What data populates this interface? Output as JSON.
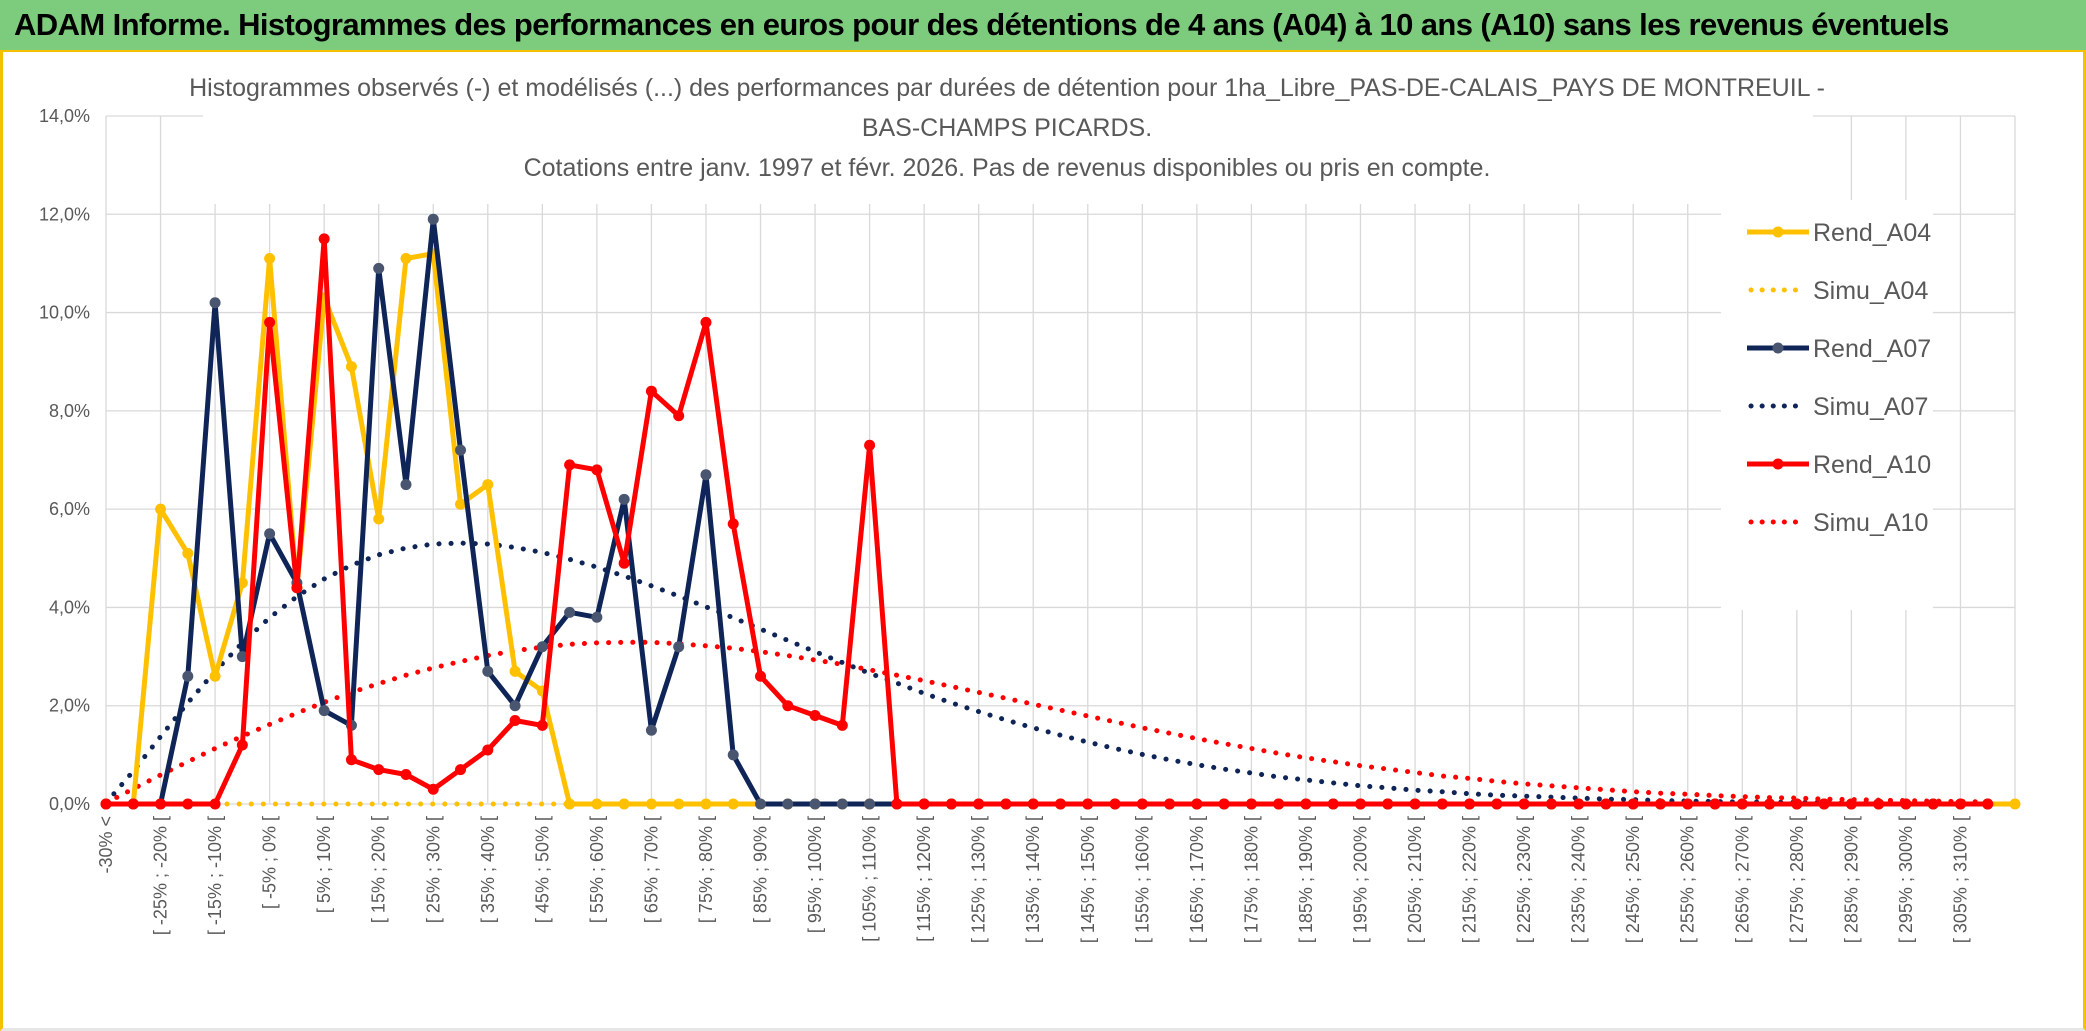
{
  "banner": {
    "title": "ADAM Informe. Histogrammes des performances en euros pour des détentions de 4 ans (A04) à 10 ans (A10) sans les revenus éventuels"
  },
  "chart_data": {
    "type": "line",
    "title_lines": [
      "Histogrammes observés (-) et modélisés (...) des performances par durées de détention pour 1ha_Libre_PAS-DE-CALAIS_PAYS DE MONTREUIL -",
      "BAS-CHAMPS PICARDS.",
      "Cotations entre janv. 1997 et févr. 2026. Pas de revenus disponibles ou pris en compte."
    ],
    "xlabel": "",
    "ylabel": "",
    "ylim": [
      0,
      14
    ],
    "y_ticks": [
      "0,0%",
      "2,0%",
      "4,0%",
      "6,0%",
      "8,0%",
      "10,0%",
      "12,0%",
      "14,0%"
    ],
    "x_tick_labels": [
      "-30% <",
      "[ -25% ; -20% [",
      "[ -15% ; -10% [",
      "[ -5% ; 0% [",
      "[ 5% ; 10% [",
      "[ 15% ; 20% [",
      "[ 25% ; 30% [",
      "[ 35% ; 40% [",
      "[ 45% ; 50% [",
      "[ 55% ; 60% [",
      "[ 65% ; 70% [",
      "[ 75% ; 80% [",
      "[ 85% ; 90% [",
      "[ 95% ; 100% [",
      "[ 105% ; 110% [",
      "[ 115% ; 120% [",
      "[ 125% ; 130% [",
      "[ 135% ; 140% [",
      "[ 145% ; 150% [",
      "[ 155% ; 160% [",
      "[ 165% ; 170% [",
      "[ 175% ; 180% [",
      "[ 185% ; 190% [",
      "[ 195% ; 200% [",
      "[ 205% ; 210% [",
      "[ 215% ; 220% [",
      "[ 225% ; 230% [",
      "[ 235% ; 240% [",
      "[ 245% ; 250% [",
      "[ 255% ; 260% [",
      "[ 265% ; 270% [",
      "[ 275% ; 280% [",
      "[ 285% ; 290% [",
      "[ 295% ; 300% [",
      "[ 305% ; 310% ["
    ],
    "grid": true,
    "legend_position": "right",
    "series": [
      {
        "name": "Rend_A04",
        "style": "solid",
        "color": "#ffc000",
        "values": [
          0,
          0,
          6.0,
          5.1,
          2.6,
          4.5,
          11.1,
          4.4,
          10.3,
          8.9,
          5.8,
          11.1,
          11.2,
          6.1,
          6.5,
          2.7,
          2.3,
          0,
          0,
          0,
          0,
          0,
          0,
          0,
          0,
          0,
          0,
          0,
          0,
          0,
          0,
          0,
          0,
          0,
          0,
          0,
          0,
          0,
          0,
          0,
          0,
          0,
          0,
          0,
          0,
          0,
          0,
          0,
          0,
          0,
          0,
          0,
          0,
          0,
          0,
          0,
          0,
          0,
          0,
          0,
          0,
          0,
          0,
          0,
          0,
          0,
          0,
          0,
          0,
          0,
          0
        ]
      },
      {
        "name": "Simu_A04",
        "style": "dotted",
        "color": "#ffc000",
        "values": [
          0,
          0,
          0,
          0,
          0,
          0,
          0,
          0,
          0,
          0,
          0,
          0,
          0,
          0,
          0,
          0,
          0,
          0,
          0,
          0,
          0,
          0,
          0,
          0,
          0,
          0,
          0,
          0,
          0,
          0,
          0,
          0,
          0,
          0,
          0,
          0,
          0,
          0,
          0,
          0,
          0,
          0,
          0,
          0,
          0,
          0,
          0,
          0,
          0,
          0,
          0,
          0,
          0,
          0,
          0,
          0,
          0,
          0,
          0,
          0,
          0,
          0,
          0,
          0,
          0,
          0,
          0,
          0,
          0,
          0
        ]
      },
      {
        "name": "Rend_A07",
        "style": "solid",
        "color": "#0f2557",
        "values": [
          0,
          0,
          0,
          2.6,
          10.2,
          3.0,
          5.5,
          4.5,
          1.9,
          1.6,
          10.9,
          6.5,
          11.9,
          7.2,
          2.7,
          2.0,
          3.2,
          3.9,
          3.8,
          6.2,
          1.5,
          3.2,
          6.7,
          1.0,
          0,
          0,
          0,
          0,
          0,
          0,
          0,
          0,
          0,
          0,
          0,
          0,
          0,
          0,
          0,
          0,
          0,
          0,
          0,
          0,
          0,
          0,
          0,
          0,
          0,
          0,
          0,
          0,
          0,
          0,
          0,
          0,
          0,
          0,
          0,
          0,
          0,
          0,
          0,
          0,
          0,
          0,
          0,
          0,
          0,
          0
        ]
      },
      {
        "name": "Simu_A07",
        "style": "dotted",
        "color": "#0f2557",
        "values": [
          0.02,
          0.67,
          1.37,
          2.06,
          2.7,
          3.28,
          3.79,
          4.22,
          4.58,
          4.86,
          5.07,
          5.21,
          5.29,
          5.31,
          5.29,
          5.22,
          5.12,
          4.98,
          4.82,
          4.64,
          4.44,
          4.23,
          4.01,
          3.79,
          3.56,
          3.33,
          3.1,
          2.88,
          2.66,
          2.46,
          2.25,
          2.06,
          1.88,
          1.71,
          1.55,
          1.4,
          1.26,
          1.13,
          1.01,
          0.9,
          0.8,
          0.71,
          0.63,
          0.55,
          0.49,
          0.43,
          0.37,
          0.33,
          0.28,
          0.25,
          0.21,
          0.18,
          0.16,
          0.14,
          0.12,
          0.1,
          0.09,
          0.07,
          0.06,
          0.05,
          0.04,
          0.04,
          0.03,
          0.03,
          0.02,
          0.02,
          0.01,
          0.01,
          0.01,
          0.01
        ]
      },
      {
        "name": "Rend_A10",
        "style": "solid",
        "color": "#ff0000",
        "values": [
          0,
          0,
          0,
          0,
          0,
          1.2,
          9.8,
          4.4,
          11.5,
          0.9,
          0.7,
          0.6,
          0.3,
          0.7,
          1.1,
          1.7,
          1.6,
          6.9,
          6.8,
          4.9,
          8.4,
          7.9,
          9.8,
          5.7,
          2.6,
          2.0,
          1.8,
          1.6,
          7.3,
          0,
          0,
          0,
          0,
          0,
          0,
          0,
          0,
          0,
          0,
          0,
          0,
          0,
          0,
          0,
          0,
          0,
          0,
          0,
          0,
          0,
          0,
          0,
          0,
          0,
          0,
          0,
          0,
          0,
          0,
          0,
          0,
          0,
          0,
          0,
          0,
          0,
          0,
          0,
          0,
          0
        ]
      },
      {
        "name": "Simu_A10",
        "style": "dotted",
        "color": "#ff0000",
        "values": [
          0.02,
          0.31,
          0.59,
          0.86,
          1.13,
          1.38,
          1.62,
          1.85,
          2.07,
          2.27,
          2.45,
          2.62,
          2.77,
          2.9,
          3.02,
          3.12,
          3.19,
          3.25,
          3.28,
          3.29,
          3.29,
          3.26,
          3.22,
          3.17,
          3.1,
          3.02,
          2.93,
          2.84,
          2.73,
          2.62,
          2.51,
          2.39,
          2.27,
          2.15,
          2.03,
          1.91,
          1.79,
          1.67,
          1.55,
          1.44,
          1.33,
          1.23,
          1.13,
          1.03,
          0.94,
          0.86,
          0.78,
          0.71,
          0.64,
          0.57,
          0.52,
          0.46,
          0.41,
          0.37,
          0.33,
          0.29,
          0.25,
          0.22,
          0.2,
          0.17,
          0.15,
          0.13,
          0.12,
          0.1,
          0.09,
          0.08,
          0.07,
          0.06,
          0.05,
          0.04
        ]
      }
    ]
  }
}
